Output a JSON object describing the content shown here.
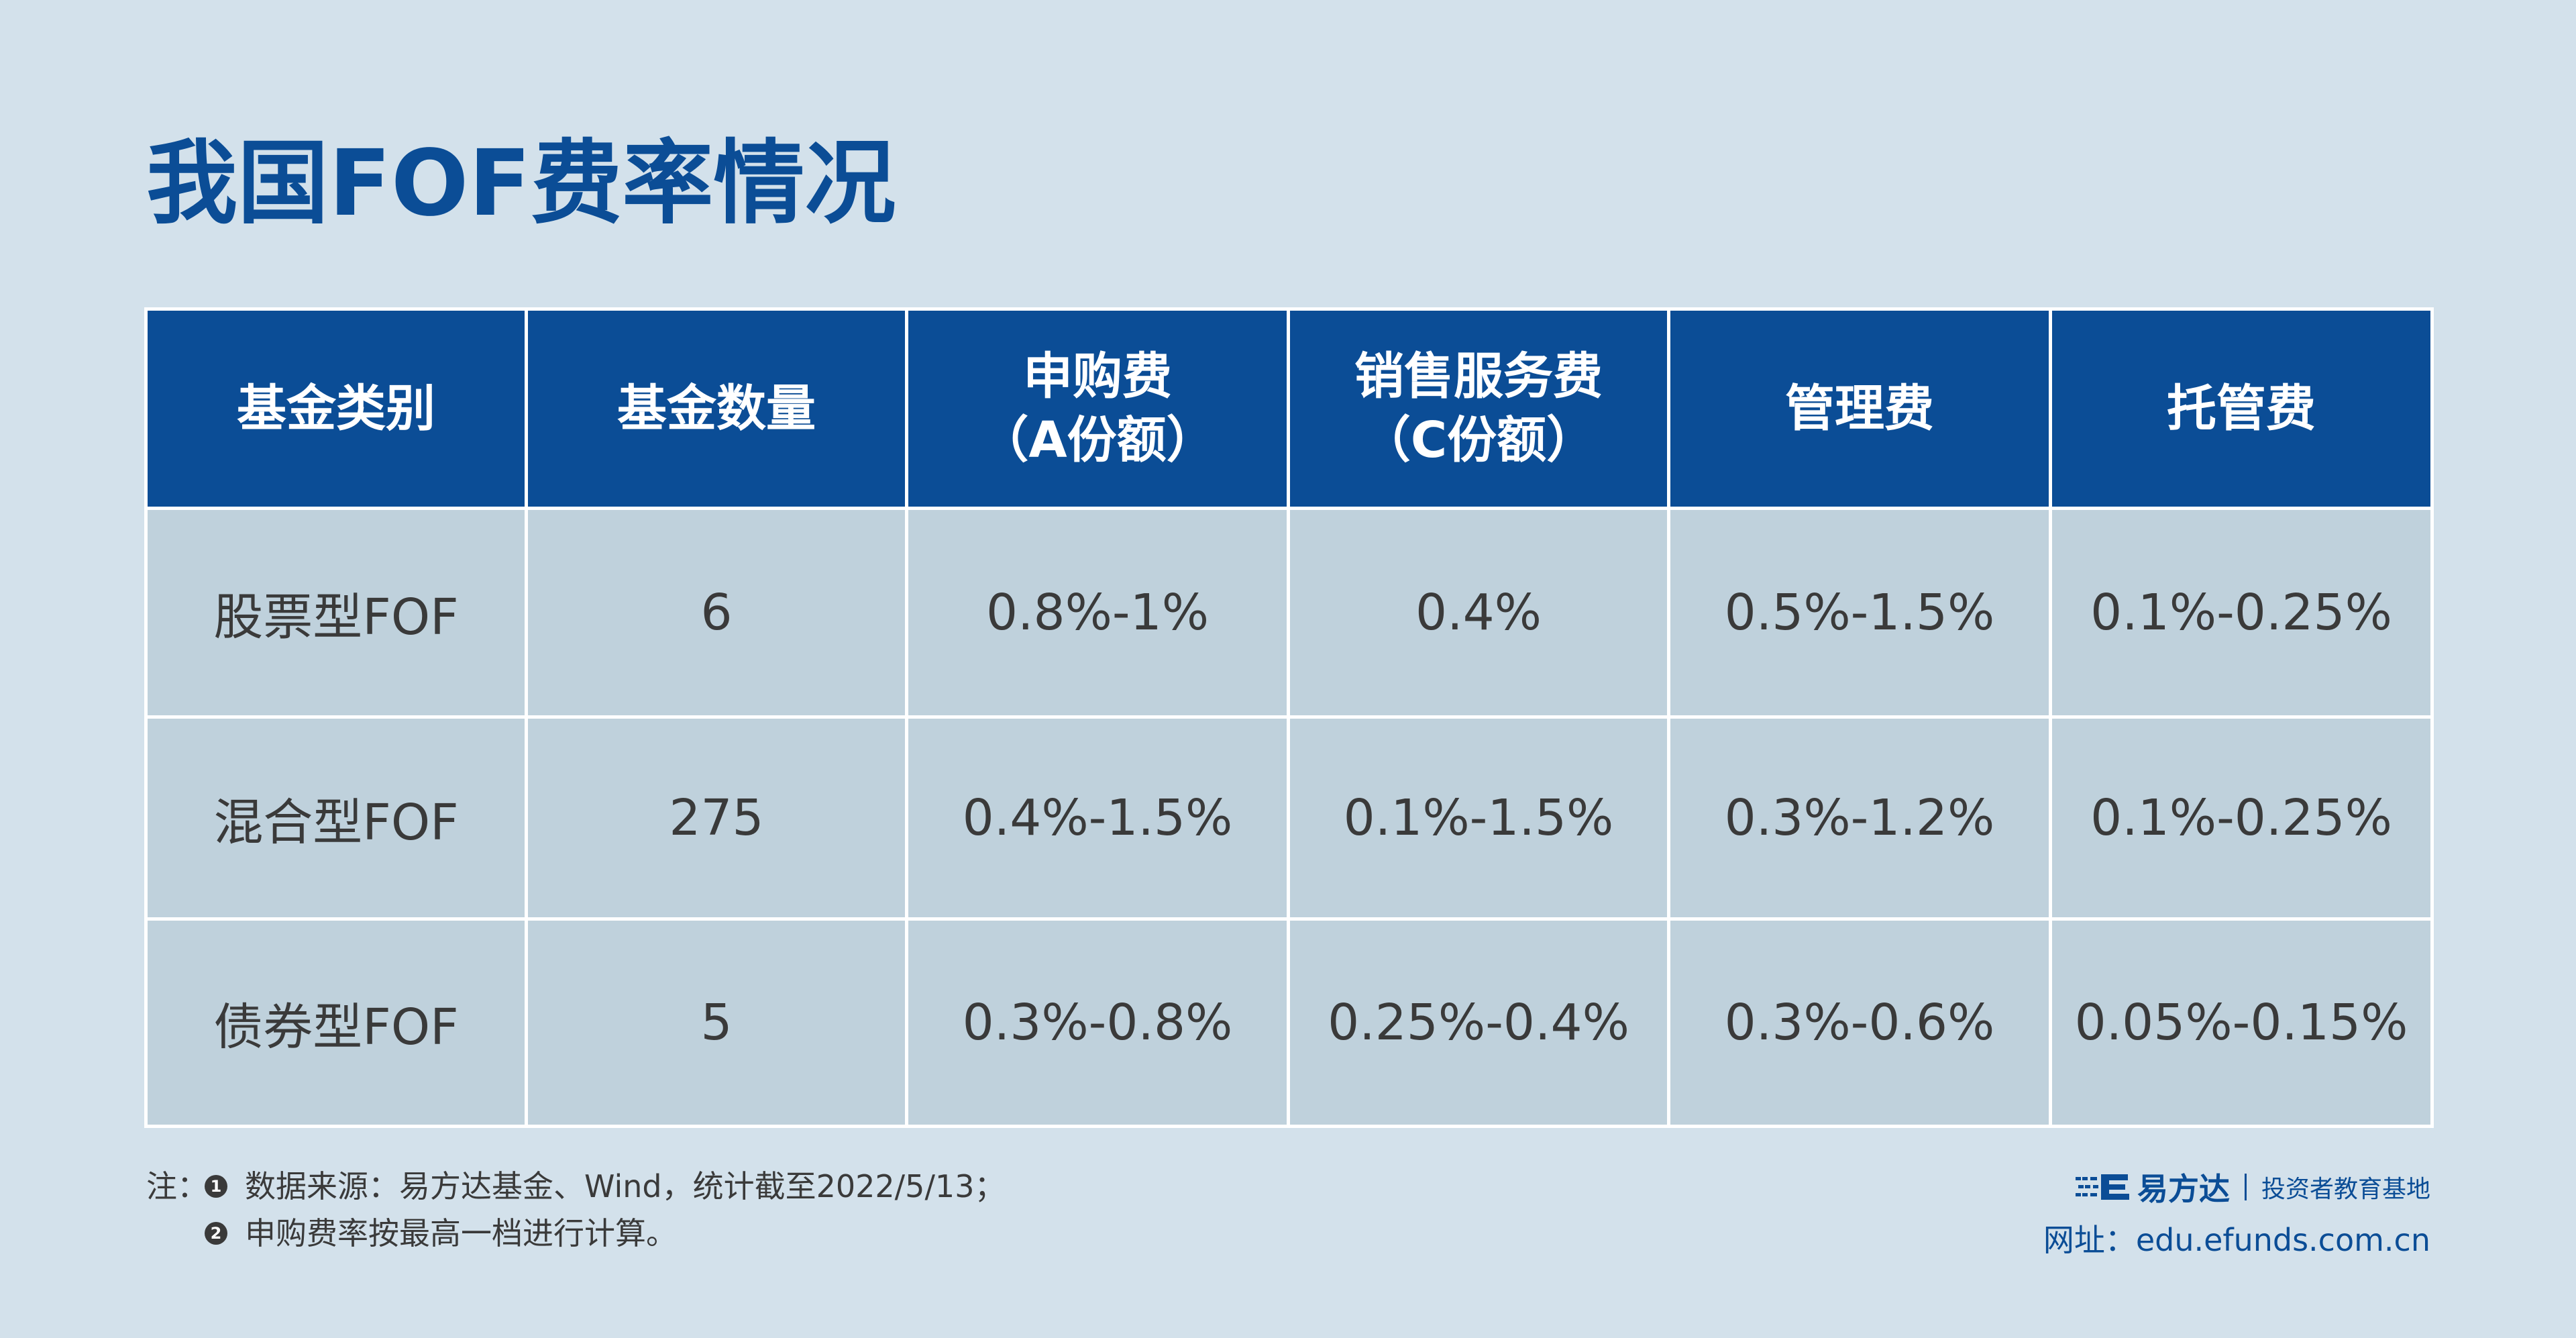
{
  "title": "我国FOF费率情况",
  "table": {
    "headers": [
      {
        "line1": "基金类别",
        "line2": ""
      },
      {
        "line1": "基金数量",
        "line2": ""
      },
      {
        "line1": "申购费",
        "line2": "（A份额）"
      },
      {
        "line1": "销售服务费",
        "line2": "（C份额）"
      },
      {
        "line1": "管理费",
        "line2": ""
      },
      {
        "line1": "托管费",
        "line2": ""
      }
    ],
    "rows": [
      {
        "category": "股票型FOF",
        "count": "6",
        "subscription_fee": "0.8%-1%",
        "sales_service_fee": "0.4%",
        "management_fee": "0.5%-1.5%",
        "custody_fee": "0.1%-0.25%"
      },
      {
        "category": "混合型FOF",
        "count": "275",
        "subscription_fee": "0.4%-1.5%",
        "sales_service_fee": "0.1%-1.5%",
        "management_fee": "0.3%-1.2%",
        "custody_fee": "0.1%-0.25%"
      },
      {
        "category": "债券型FOF",
        "count": "5",
        "subscription_fee": "0.3%-0.8%",
        "sales_service_fee": "0.25%-0.4%",
        "management_fee": "0.3%-0.6%",
        "custody_fee": "0.05%-0.15%"
      }
    ]
  },
  "notes": {
    "prefix": "注：",
    "items": [
      {
        "marker": "1",
        "text": "数据来源：易方达基金、Wind，统计截至2022/5/13；"
      },
      {
        "marker": "2",
        "text": "申购费率按最高一档进行计算。"
      }
    ]
  },
  "brand": {
    "name": "易方达",
    "subtitle": "投资者教育基地",
    "website": "网址：edu.efunds.com.cn",
    "logo_icon": "efunds-logo-icon",
    "color": "#0b4d96"
  },
  "colors": {
    "background": "#d3e1eb",
    "header_bg": "#0b4d96",
    "cell_bg": "#bfd1dc",
    "title": "#0b4d96"
  }
}
